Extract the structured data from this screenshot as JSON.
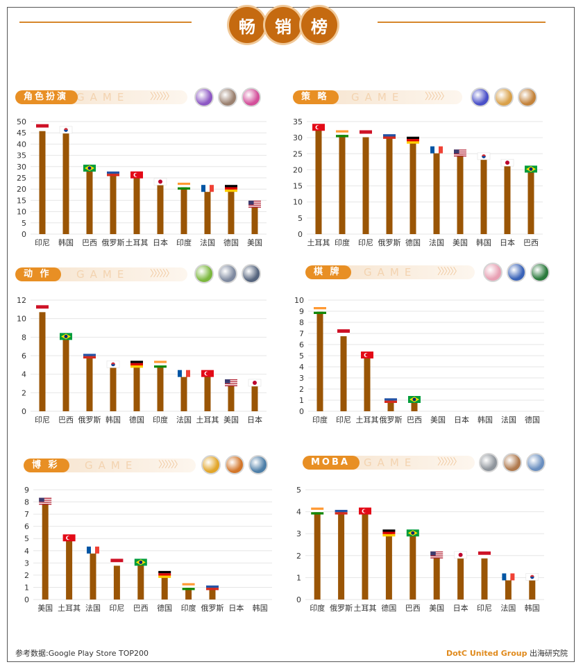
{
  "header": {
    "title_chars": [
      "畅",
      "销",
      "榜"
    ]
  },
  "footer": {
    "source": "参考数据:Google Play Store TOP200",
    "brand": "DotC United Group",
    "suffix": "出海研究院"
  },
  "colors": {
    "bar": "#9a5505",
    "accent": "#e88f24",
    "grid": "#e6e6e6",
    "axis_text": "#333333"
  },
  "chart_data": [
    {
      "type": "bar",
      "panel_label": "角色扮演",
      "band_text": "GAME",
      "categories": [
        "印尼",
        "韩国",
        "巴西",
        "俄罗斯",
        "土耳其",
        "日本",
        "印度",
        "法国",
        "德国",
        "美国"
      ],
      "values": [
        47,
        46,
        29,
        27,
        26,
        23,
        21,
        20,
        20,
        13
      ],
      "flags": [
        "ID",
        "KR",
        "BR",
        "RU",
        "TR",
        "JP",
        "IN",
        "FR",
        "DE",
        "US"
      ],
      "ylim": [
        0,
        50
      ],
      "yticks": [
        0,
        5,
        10,
        15,
        20,
        25,
        30,
        35,
        40,
        45,
        50
      ],
      "icons": [
        "#8d58c4",
        "#9b8170",
        "#d34f9a"
      ]
    },
    {
      "type": "bar",
      "panel_label": "策 略",
      "band_text": "GAME",
      "categories": [
        "土耳其",
        "印度",
        "印尼",
        "俄罗斯",
        "德国",
        "法国",
        "美国",
        "韩国",
        "日本",
        "巴西"
      ],
      "values": [
        33,
        31,
        31,
        30.5,
        29,
        26,
        25,
        24,
        22,
        20
      ],
      "flags": [
        "TR",
        "IN",
        "ID",
        "RU",
        "DE",
        "FR",
        "US",
        "KR",
        "JP",
        "BR"
      ],
      "ylim": [
        0,
        35
      ],
      "yticks": [
        0,
        5,
        10,
        15,
        20,
        25,
        30,
        35
      ],
      "icons": [
        "#4a50c8",
        "#d9a14a",
        "#c4833b"
      ]
    },
    {
      "type": "bar",
      "panel_label": "动 作",
      "band_text": "GAME",
      "categories": [
        "印尼",
        "巴西",
        "俄罗斯",
        "韩国",
        "德国",
        "印度",
        "法国",
        "土耳其",
        "美国",
        "日本"
      ],
      "values": [
        11,
        8,
        6,
        5,
        5,
        5,
        4,
        4,
        3,
        3
      ],
      "flags": [
        "ID",
        "BR",
        "RU",
        "KR",
        "DE",
        "IN",
        "FR",
        "TR",
        "US",
        "JP"
      ],
      "ylim": [
        0,
        12
      ],
      "yticks": [
        0,
        2,
        4,
        6,
        8,
        10,
        12
      ],
      "icons": [
        "#7cb83e",
        "#7f8aa0",
        "#56657e"
      ]
    },
    {
      "type": "bar",
      "panel_label": "棋 牌",
      "band_text": "GAME",
      "categories": [
        "印度",
        "印尼",
        "土耳其",
        "俄罗斯",
        "巴西",
        "美国",
        "日本",
        "韩国",
        "法国",
        "德国"
      ],
      "values": [
        9,
        7,
        5,
        1,
        1,
        0,
        0,
        0,
        0,
        0
      ],
      "flags": [
        "IN",
        "ID",
        "TR",
        "RU",
        "BR",
        "",
        "",
        "",
        "",
        ""
      ],
      "ylim": [
        0,
        10
      ],
      "yticks": [
        0,
        1,
        2,
        3,
        4,
        5,
        6,
        7,
        8,
        9,
        10
      ],
      "icons": [
        "#e8a1b4",
        "#3a63b8",
        "#2b7a3d"
      ]
    },
    {
      "type": "bar",
      "panel_label": "博 彩",
      "band_text": "GAME",
      "categories": [
        "美国",
        "土耳其",
        "法国",
        "印尼",
        "巴西",
        "德国",
        "印度",
        "俄罗斯",
        "日本",
        "韩国"
      ],
      "values": [
        8,
        5,
        4,
        3,
        3,
        2,
        1,
        1,
        0,
        0
      ],
      "flags": [
        "US",
        "TR",
        "FR",
        "ID",
        "BR",
        "DE",
        "IN",
        "RU",
        "",
        ""
      ],
      "ylim": [
        0,
        9
      ],
      "yticks": [
        0,
        1,
        2,
        3,
        4,
        5,
        6,
        7,
        8,
        9
      ],
      "icons": [
        "#e2a62a",
        "#d3762a",
        "#4e7fa8"
      ]
    },
    {
      "type": "bar",
      "panel_label": "MOBA",
      "band_text": "GAME",
      "categories": [
        "印度",
        "俄罗斯",
        "土耳其",
        "德国",
        "巴西",
        "美国",
        "日本",
        "印尼",
        "法国",
        "韩国"
      ],
      "values": [
        4,
        4,
        4,
        3,
        3,
        2,
        2,
        2,
        1,
        1
      ],
      "flags": [
        "IN",
        "RU",
        "TR",
        "DE",
        "BR",
        "US",
        "JP",
        "ID",
        "FR",
        "KR"
      ],
      "ylim": [
        0,
        5
      ],
      "yticks": [
        0,
        1,
        2,
        3,
        4,
        5
      ],
      "icons": [
        "#8f959c",
        "#b07a4e",
        "#6a8fc0"
      ]
    }
  ]
}
